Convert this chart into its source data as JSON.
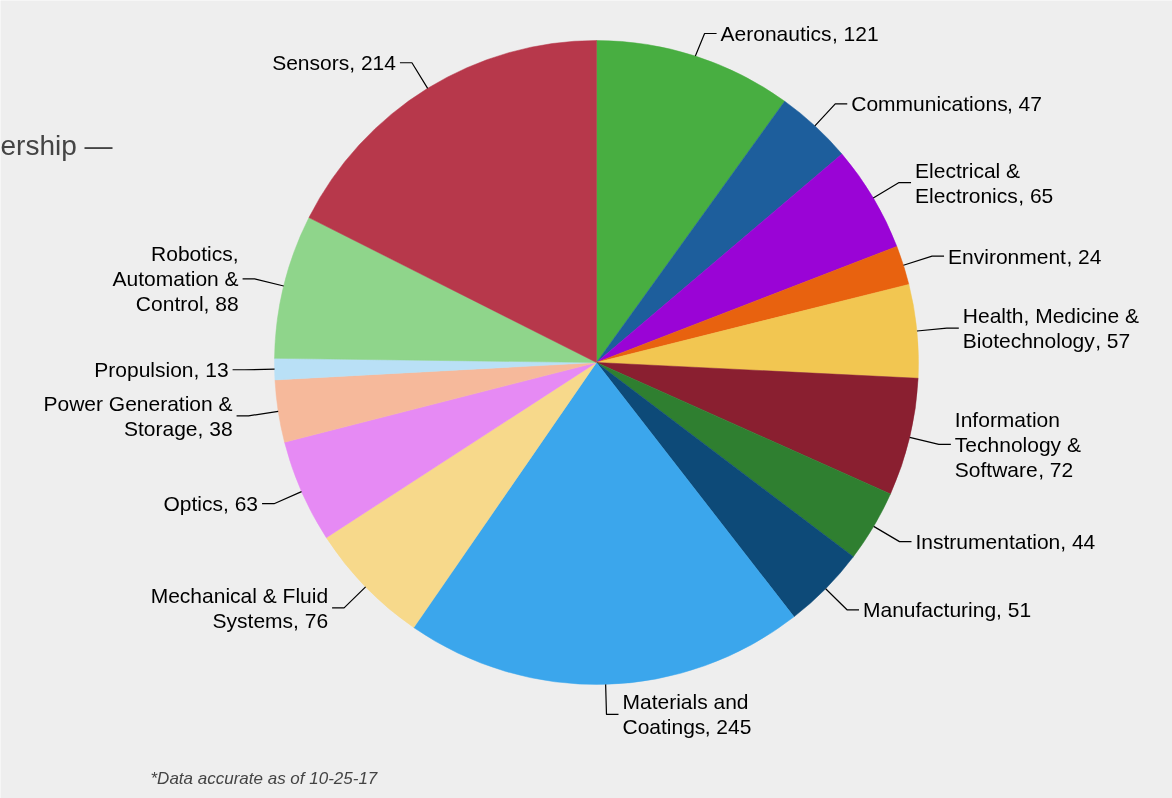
{
  "chart_data": {
    "type": "pie",
    "categories": [
      "Aeronautics",
      "Communications",
      "Electrical & Electronics",
      "Environment",
      "Health, Medicine & Biotechnology",
      "Information Technology & Software",
      "Instrumentation",
      "Manufacturing",
      "Materials and Coatings",
      "Mechanical & Fluid Systems",
      "Optics",
      "Power Generation & Storage",
      "Propulsion",
      "Robotics, Automation & Control",
      "Sensors"
    ],
    "values": [
      121,
      47,
      65,
      24,
      57,
      72,
      44,
      51,
      245,
      76,
      63,
      38,
      13,
      88,
      214
    ],
    "colors": [
      "#48ae41",
      "#1d5e9c",
      "#9a04d6",
      "#e8620f",
      "#f2c651",
      "#8a1f30",
      "#2f7f30",
      "#0d4a78",
      "#3ba6ec",
      "#f7d98b",
      "#e68af4",
      "#f6b99b",
      "#b9e0f6",
      "#8fd58b",
      "#b7384b"
    ],
    "value_labels": [
      ", 121",
      ", 47",
      ", 65",
      ", 24",
      ", 57",
      ", 72",
      ", 44",
      ", 51",
      ", 245",
      ", 76",
      ", 63",
      ", 38",
      ", 13",
      ", 88",
      ", 214"
    ],
    "annotations": [
      "ership —",
      "*Data accurate as of 10-25-17"
    ]
  }
}
